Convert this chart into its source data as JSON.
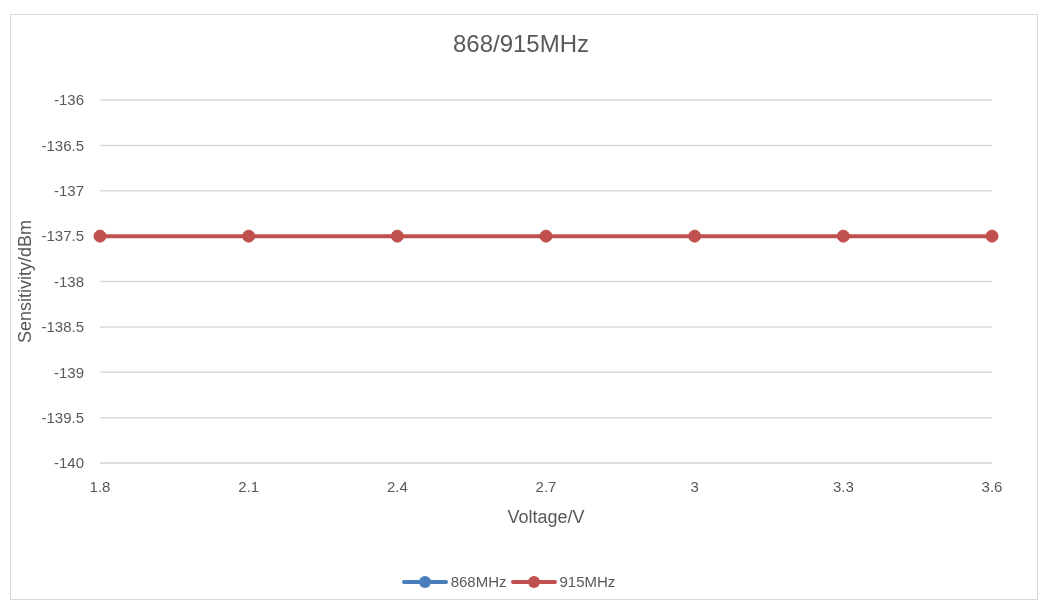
{
  "chart_data": {
    "type": "line",
    "title": "868/915MHz",
    "xlabel": "Voltage/V",
    "ylabel": "Sensitivity/dBm",
    "categories": [
      "1.8",
      "2.1",
      "2.4",
      "2.7",
      "3",
      "3.3",
      "3.6"
    ],
    "series": [
      {
        "name": "868MHz",
        "color": "#4a7ebb",
        "values": [
          null,
          null,
          null,
          null,
          null,
          null,
          null
        ]
      },
      {
        "name": "915MHz",
        "color": "#c0504d",
        "values": [
          -137.5,
          -137.5,
          -137.5,
          -137.5,
          -137.5,
          -137.5,
          -137.5
        ]
      }
    ],
    "ylim": [
      -140,
      -136
    ],
    "yticks": [
      -140,
      -139.5,
      -139,
      -138.5,
      -138,
      -137.5,
      -137,
      -136.5,
      -136
    ],
    "grid": "y",
    "legend": "bottom",
    "marker": "circle",
    "line_style": "solid"
  }
}
